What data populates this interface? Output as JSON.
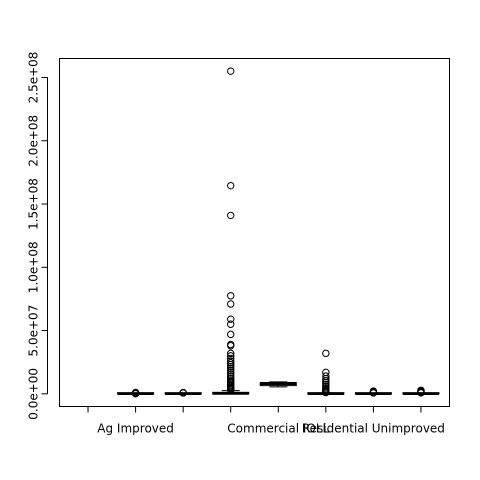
{
  "chart_data": {
    "type": "boxplot",
    "categories": [
      {
        "label": "",
        "stats": null,
        "outliers": []
      },
      {
        "label": "Ag Improved",
        "stats": [
          0,
          0,
          50000,
          250000,
          700000
        ],
        "outliers": [
          1100000,
          800000,
          400000,
          250000,
          150000
        ]
      },
      {
        "label": "",
        "stats": [
          0,
          0,
          30000,
          200000,
          600000
        ],
        "outliers": [
          1000000,
          900000,
          800000,
          700000
        ]
      },
      {
        "label": "",
        "stats": [
          0,
          0,
          300000,
          1200000,
          2500000
        ],
        "outliers": [
          255000000,
          164500000,
          141000000,
          77500000,
          71000000,
          59000000,
          55000000,
          47000000,
          39000000,
          38000000,
          32000000,
          30000000,
          28000000,
          26000000,
          24500000,
          23000000,
          21500000,
          20000000,
          18500000,
          17000000,
          15500000,
          14000000,
          12500000,
          11000000,
          9800000,
          8800000,
          7800000,
          6800000,
          5800000,
          5000000,
          4300000,
          3600000,
          3000000
        ]
      },
      {
        "label": "Commercial IOLL",
        "stats": [
          5500000,
          6500000,
          8000000,
          9000000,
          9500000
        ],
        "outliers": []
      },
      {
        "label": "",
        "stats": [
          0,
          0,
          50000,
          300000,
          800000
        ],
        "outliers": [
          32000000,
          17000000,
          14000000,
          12000000,
          10500000,
          9000000,
          7500000,
          6000000,
          4800000,
          3800000,
          3000000,
          2400000,
          1900000,
          1500000,
          1200000,
          1000000
        ]
      },
      {
        "label": "Residential Unimproved",
        "stats": [
          0,
          0,
          50000,
          200000,
          600000
        ],
        "outliers": [
          2200000,
          1800000,
          1400000,
          1100000,
          900000,
          750000
        ]
      },
      {
        "label": "",
        "stats": [
          0,
          0,
          50000,
          200000,
          600000
        ],
        "outliers": [
          2800000,
          2400000,
          2000000,
          1600000,
          1300000,
          1000000,
          800000
        ]
      }
    ],
    "y_ticks": [
      {
        "value": 0,
        "label": "0.0e+00"
      },
      {
        "value": 50000000,
        "label": "5.0e+07"
      },
      {
        "value": 100000000,
        "label": "1.0e+08"
      },
      {
        "value": 150000000,
        "label": "1.5e+08"
      },
      {
        "value": 200000000,
        "label": "2.0e+08"
      },
      {
        "value": 250000000,
        "label": "2.5e+08"
      }
    ],
    "ylim": [
      -10000000,
      265000000
    ],
    "title": "",
    "xlabel": "",
    "ylabel": "",
    "grid": false
  }
}
